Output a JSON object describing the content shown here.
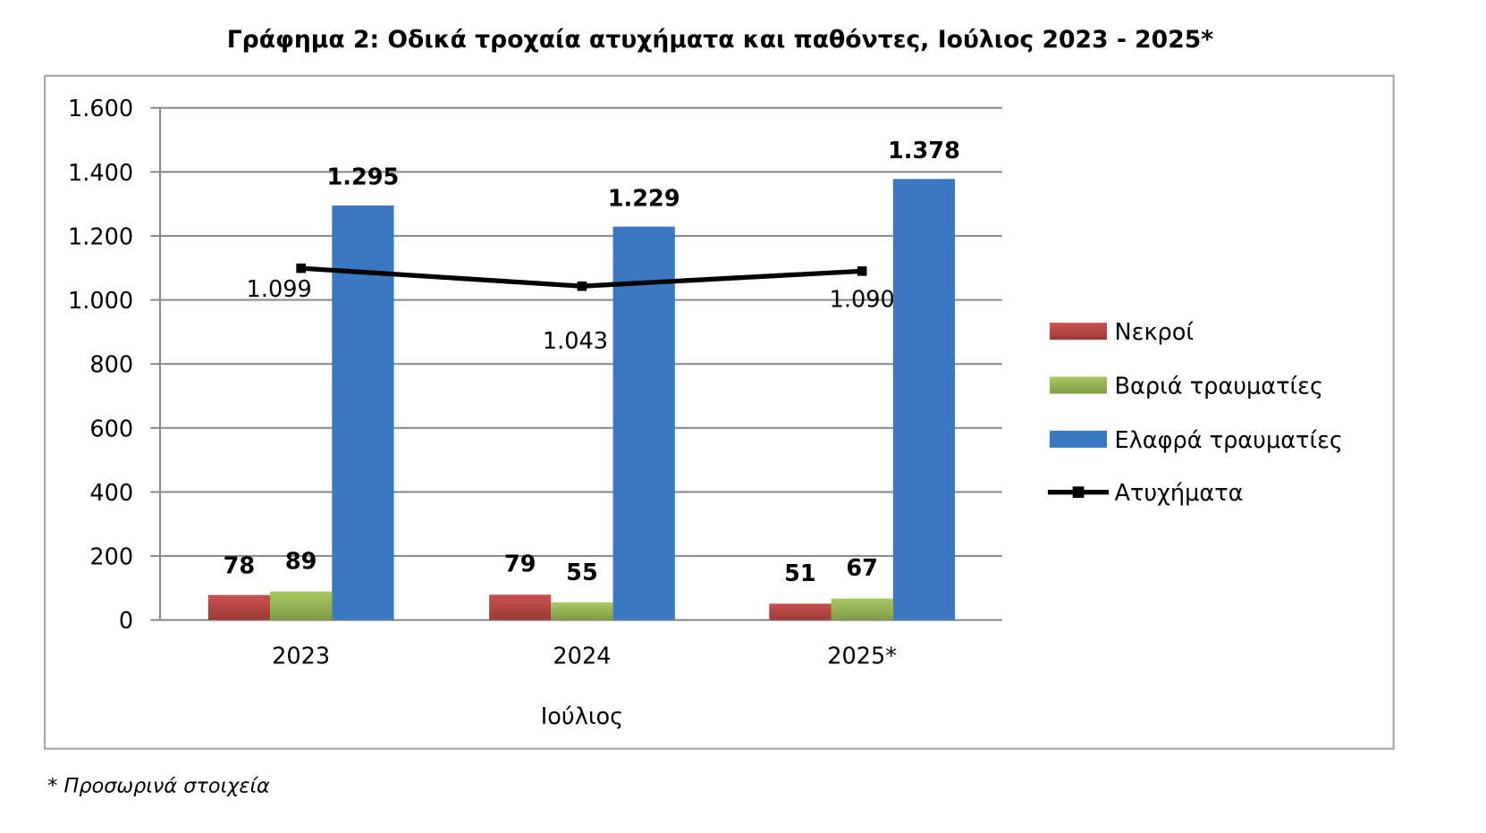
{
  "chart_data": {
    "type": "bar",
    "title": "Γράφημα 2: Οδικά τροχαία ατυχήματα και παθόντες, Ιούλιος 2023 - 2025*",
    "xlabel": "Ιούλιος",
    "ylabel": "",
    "ylim": [
      0,
      1600
    ],
    "yticks": [
      0,
      200,
      400,
      600,
      800,
      1000,
      1200,
      1400,
      1600
    ],
    "ytick_labels": [
      "0",
      "200",
      "400",
      "600",
      "800",
      "1.000",
      "1.200",
      "1.400",
      "1.600"
    ],
    "grid": true,
    "legend_position": "right",
    "categories": [
      "2023",
      "2024",
      "2025*"
    ],
    "series": [
      {
        "name": "Νεκροί",
        "type": "bar",
        "color": "#c0504d",
        "values": [
          78,
          79,
          51
        ],
        "labels": [
          "78",
          "79",
          "51"
        ]
      },
      {
        "name": "Βαριά τραυματίες",
        "type": "bar",
        "color": "#9bbb59",
        "values": [
          89,
          55,
          67
        ],
        "labels": [
          "89",
          "55",
          "67"
        ]
      },
      {
        "name": "Ελαφρά τραυματίες",
        "type": "bar",
        "color": "#3a78c2",
        "values": [
          1295,
          1229,
          1378
        ],
        "labels": [
          "1.295",
          "1.229",
          "1.378"
        ]
      },
      {
        "name": "Ατυχήματα",
        "type": "line",
        "color": "#000000",
        "values": [
          1099,
          1043,
          1090
        ],
        "labels": [
          "1.099",
          "1.043",
          "1.090"
        ]
      }
    ]
  },
  "footnote": "* Προσωρινά στοιχεία"
}
